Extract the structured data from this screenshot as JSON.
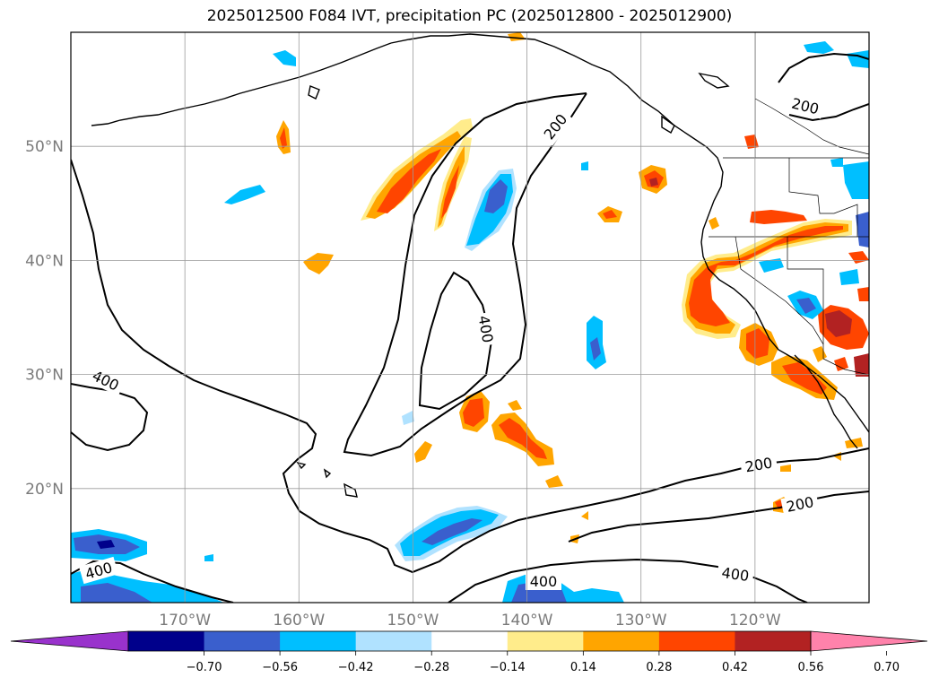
{
  "title": "2025012500 F084 IVT, precipitation PC (2025012800 - 2025012900)",
  "map": {
    "projection": "equirectangular",
    "lon_range": [
      -180,
      -110
    ],
    "lat_range": [
      10,
      60
    ],
    "lat_gridlines": [
      {
        "lat": 50,
        "label": "50°N"
      },
      {
        "lat": 40,
        "label": "40°N"
      },
      {
        "lat": 30,
        "label": "30°N"
      },
      {
        "lat": 20,
        "label": "20°N"
      }
    ],
    "lon_gridlines": [
      {
        "lon": -170,
        "label": "170°W"
      },
      {
        "lon": -160,
        "label": "160°W"
      },
      {
        "lon": -150,
        "label": "150°W"
      },
      {
        "lon": -140,
        "label": "140°W"
      },
      {
        "lon": -130,
        "label": "130°W"
      },
      {
        "lon": -120,
        "label": "120°W"
      }
    ],
    "ivt_contour_labels": [
      "200",
      "200",
      "200",
      "200",
      "400",
      "400",
      "400",
      "400"
    ],
    "grid": true
  },
  "colorbar": {
    "ticks": [
      "−0.70",
      "−0.56",
      "−0.42",
      "−0.28",
      "−0.14",
      "0.14",
      "0.28",
      "0.42",
      "0.56",
      "0.70"
    ],
    "colors": [
      "#9932CC",
      "#00008B",
      "#3A5FCD",
      "#00BFFF",
      "#B0E2FF",
      "#FFFFFF",
      "#FFEC8B",
      "#FFA500",
      "#FF4500",
      "#B22222",
      "#FF82AB"
    ]
  },
  "fill_colors": {
    "pos_light": "#FFEC8B",
    "pos_orange": "#FFA500",
    "pos_red": "#FF4500",
    "pos_dark": "#B22222",
    "neg_light": "#B0E2FF",
    "neg_cyan": "#00BFFF",
    "neg_blue": "#3A5FCD",
    "neg_navy": "#00008B"
  }
}
